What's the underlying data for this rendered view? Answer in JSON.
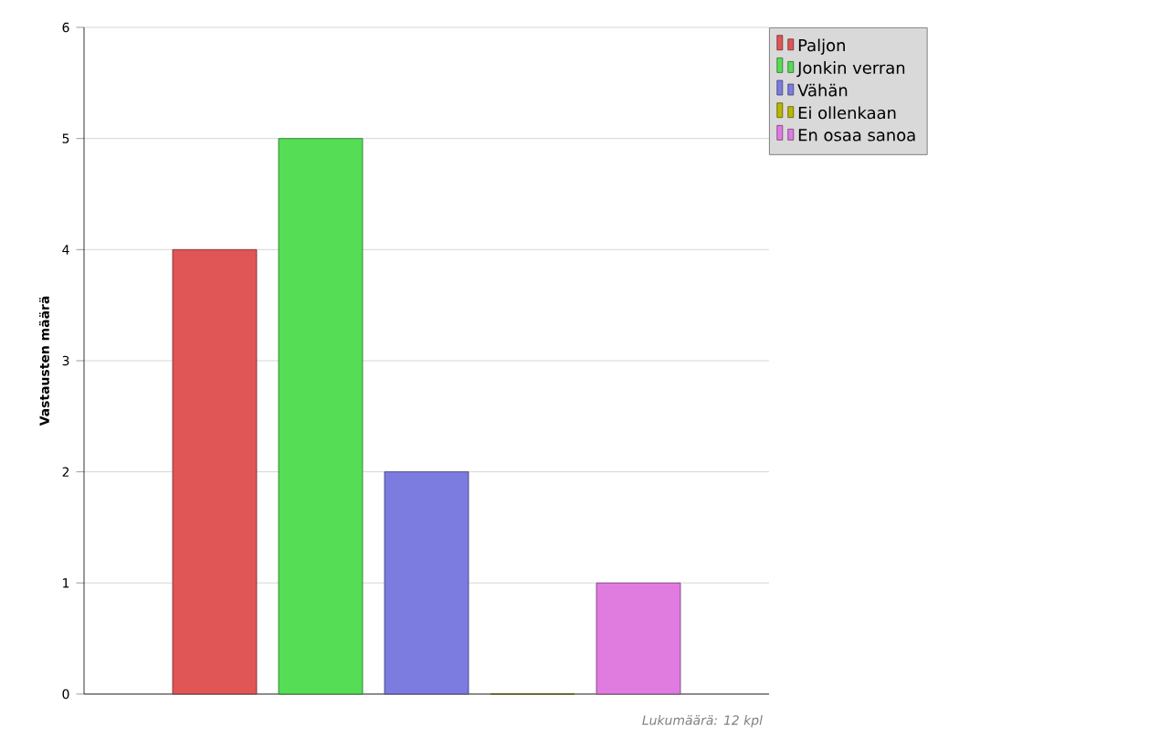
{
  "chart_data": {
    "type": "bar",
    "ylabel": "Vastausten määrä",
    "categories": [
      null
    ],
    "series": [
      {
        "name": "Paljon",
        "color": "#e05555",
        "values": [
          4
        ]
      },
      {
        "name": "Jonkin verran",
        "color": "#55dd55",
        "values": [
          5
        ]
      },
      {
        "name": "Vähän",
        "color": "#7b7be0",
        "values": [
          2
        ]
      },
      {
        "name": "Ei ollenkaan",
        "color": "#b8b800",
        "values": [
          0
        ]
      },
      {
        "name": "En osaa sanoa",
        "color": "#e07be0",
        "values": [
          1
        ]
      }
    ],
    "ylim": [
      0,
      6
    ],
    "yticks": [
      0,
      1,
      2,
      3,
      4,
      5,
      6
    ],
    "grid": "y",
    "legend": "top right",
    "annotations": [
      "Lukumäärä: 12 kpl"
    ]
  }
}
